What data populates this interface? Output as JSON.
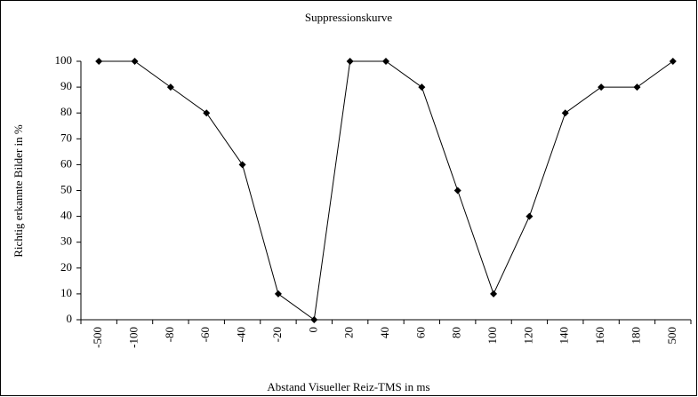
{
  "chart_data": {
    "type": "line",
    "title": "Suppressionskurve",
    "x_label": "Abstand Visueller Reiz-TMS in ms",
    "y_label": "Richtig erkannte Bilder in %",
    "categories": [
      "-500",
      "-100",
      "-80",
      "-60",
      "-40",
      "-20",
      "0",
      "20",
      "40",
      "60",
      "80",
      "100",
      "120",
      "140",
      "160",
      "180",
      "500"
    ],
    "values": [
      100,
      100,
      90,
      80,
      60,
      10,
      0,
      100,
      100,
      90,
      50,
      10,
      40,
      80,
      90,
      90,
      100
    ],
    "color": "#000000",
    "ylim": [
      0,
      100
    ],
    "yticks": [
      0,
      10,
      20,
      30,
      40,
      50,
      60,
      70,
      80,
      90,
      100
    ],
    "grid": false
  }
}
